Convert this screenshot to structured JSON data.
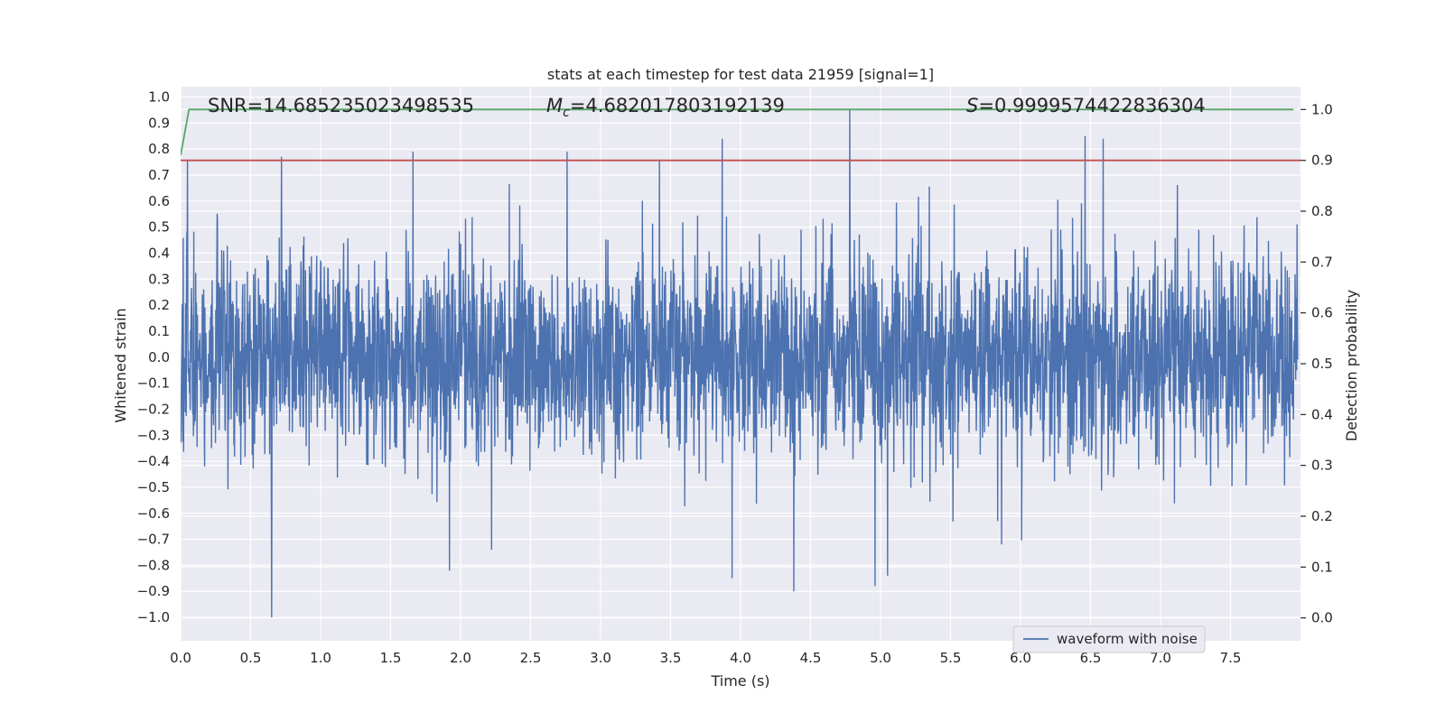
{
  "chart_data": {
    "type": "line",
    "title": "stats at each timestep for test data 21959 [signal=1]",
    "xlabel": "Time (s)",
    "ylabel": "Whitened strain",
    "y2label": "Detection probability",
    "xlim": [
      0.0,
      8.0
    ],
    "ylim": [
      -1.09,
      1.04
    ],
    "y2lim": [
      -0.045,
      1.045
    ],
    "x_ticks": [
      "0.0",
      "0.5",
      "1.0",
      "1.5",
      "2.0",
      "2.5",
      "3.0",
      "3.5",
      "4.0",
      "4.5",
      "5.0",
      "5.5",
      "6.0",
      "6.5",
      "7.0",
      "7.5"
    ],
    "y_ticks": [
      "1.0",
      "0.9",
      "0.8",
      "0.7",
      "0.6",
      "0.5",
      "0.4",
      "0.3",
      "0.2",
      "0.1",
      "0.0",
      "−0.1",
      "−0.2",
      "−0.3",
      "−0.4",
      "−0.5",
      "−0.6",
      "−0.7",
      "−0.8",
      "−0.9",
      "−1.0"
    ],
    "y2_ticks": [
      "1.0",
      "0.9",
      "0.8",
      "0.7",
      "0.6",
      "0.5",
      "0.4",
      "0.3",
      "0.2",
      "0.1",
      "0.0"
    ],
    "grid": true,
    "legend_position": "lower-right",
    "series": [
      {
        "name": "waveform with noise",
        "axis": "left",
        "color": "#4c72b0",
        "description": "dense noisy whitened strain signal, approx. between -1.0 and 0.95",
        "peaks": [
          {
            "x": 0.05,
            "y": 0.76
          },
          {
            "x": 0.72,
            "y": 0.77
          },
          {
            "x": 1.66,
            "y": 0.79
          },
          {
            "x": 2.76,
            "y": 0.79
          },
          {
            "x": 3.42,
            "y": 0.76
          },
          {
            "x": 3.87,
            "y": 0.84
          },
          {
            "x": 4.78,
            "y": 0.95
          },
          {
            "x": 6.46,
            "y": 0.85
          },
          {
            "x": 6.59,
            "y": 0.84
          }
        ],
        "troughs": [
          {
            "x": 0.65,
            "y": -1.0
          },
          {
            "x": 1.92,
            "y": -0.82
          },
          {
            "x": 2.22,
            "y": -0.74
          },
          {
            "x": 3.94,
            "y": -0.85
          },
          {
            "x": 4.38,
            "y": -0.9
          },
          {
            "x": 4.96,
            "y": -0.88
          },
          {
            "x": 5.05,
            "y": -0.84
          }
        ]
      },
      {
        "name": "detection probability",
        "axis": "right",
        "color": "#55a868",
        "x": [
          0.0,
          0.06,
          7.95
        ],
        "values": [
          0.91,
          1.0,
          1.0
        ]
      },
      {
        "name": "threshold",
        "axis": "right",
        "color": "#c44e52",
        "x": [
          0.0,
          8.0
        ],
        "values": [
          0.9,
          0.9
        ]
      }
    ],
    "annotations": {
      "snr": "SNR=14.685235023498535",
      "mc_symbol": "M",
      "mc_sub": "c",
      "mc_value": "=4.682017803192139",
      "s_symbol": "S",
      "s_value": "=0.9999574422836304"
    },
    "legend": [
      "waveform with noise"
    ]
  },
  "colors": {
    "plot_bg": "#eaeaf2",
    "grid": "#ffffff",
    "waveform": "#4c72b0",
    "probability": "#55a868",
    "threshold": "#c44e52"
  }
}
